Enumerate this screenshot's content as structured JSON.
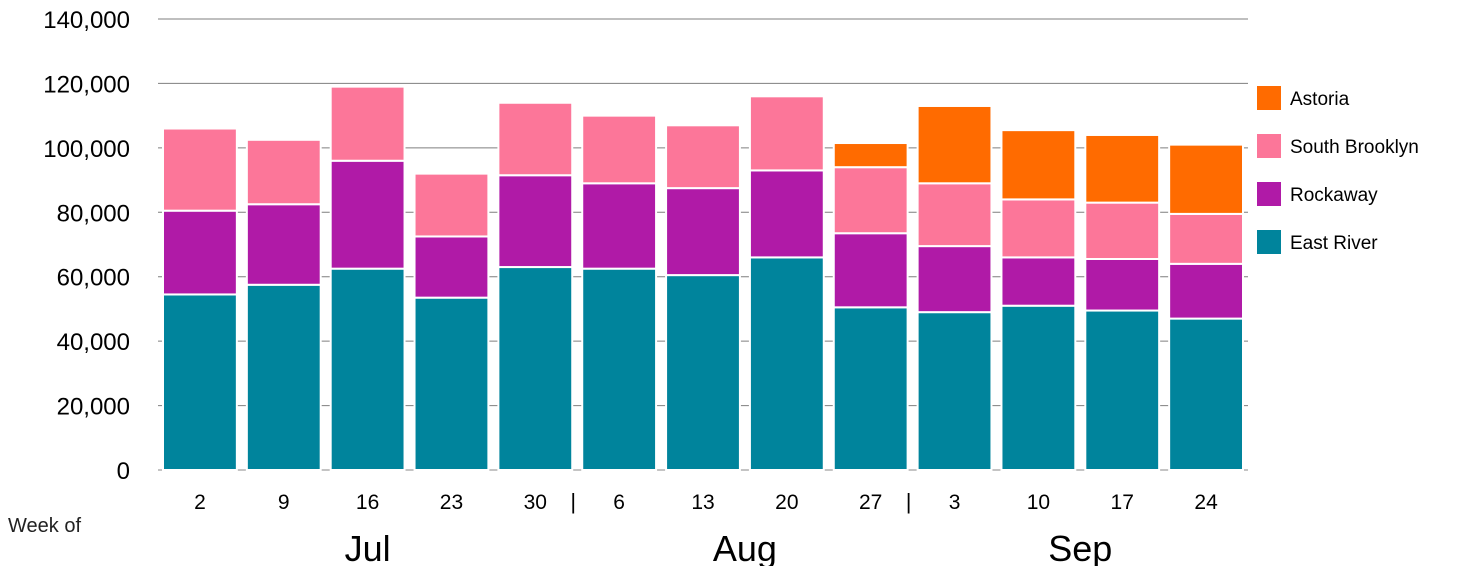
{
  "chart_data": {
    "type": "bar",
    "stacked": true,
    "categories": [
      "2",
      "9",
      "16",
      "23",
      "30",
      "6",
      "13",
      "20",
      "27",
      "3",
      "10",
      "17",
      "24"
    ],
    "month_labels": [
      "Jul",
      "Aug",
      "Sep"
    ],
    "month_separator": "|",
    "xlabel": "Week of",
    "ylabel": "",
    "ylim": [
      0,
      140000
    ],
    "yticks": [
      "0",
      "20,000",
      "40,000",
      "60,000",
      "80,000",
      "100,000",
      "120,000",
      "140,000"
    ],
    "grid": true,
    "legend_position": "right",
    "series": [
      {
        "name": "East River",
        "color": "#00849c",
        "values": [
          54500,
          57500,
          62500,
          53500,
          63000,
          62500,
          60500,
          66000,
          50500,
          49000,
          51000,
          49500,
          47000
        ]
      },
      {
        "name": "Rockaway",
        "color": "#b01aa7",
        "values": [
          26000,
          25000,
          33500,
          19000,
          28500,
          26500,
          27000,
          27000,
          23000,
          20500,
          15000,
          16000,
          17000
        ]
      },
      {
        "name": "South Brooklyn",
        "color": "#fc7699",
        "values": [
          25500,
          20000,
          23000,
          19500,
          22500,
          21000,
          19500,
          23000,
          20500,
          19500,
          18000,
          17500,
          15500
        ]
      },
      {
        "name": "Astoria",
        "color": "#ff6b00",
        "values": [
          0,
          0,
          0,
          0,
          0,
          0,
          0,
          0,
          7500,
          24000,
          21500,
          21000,
          21500
        ]
      }
    ]
  }
}
